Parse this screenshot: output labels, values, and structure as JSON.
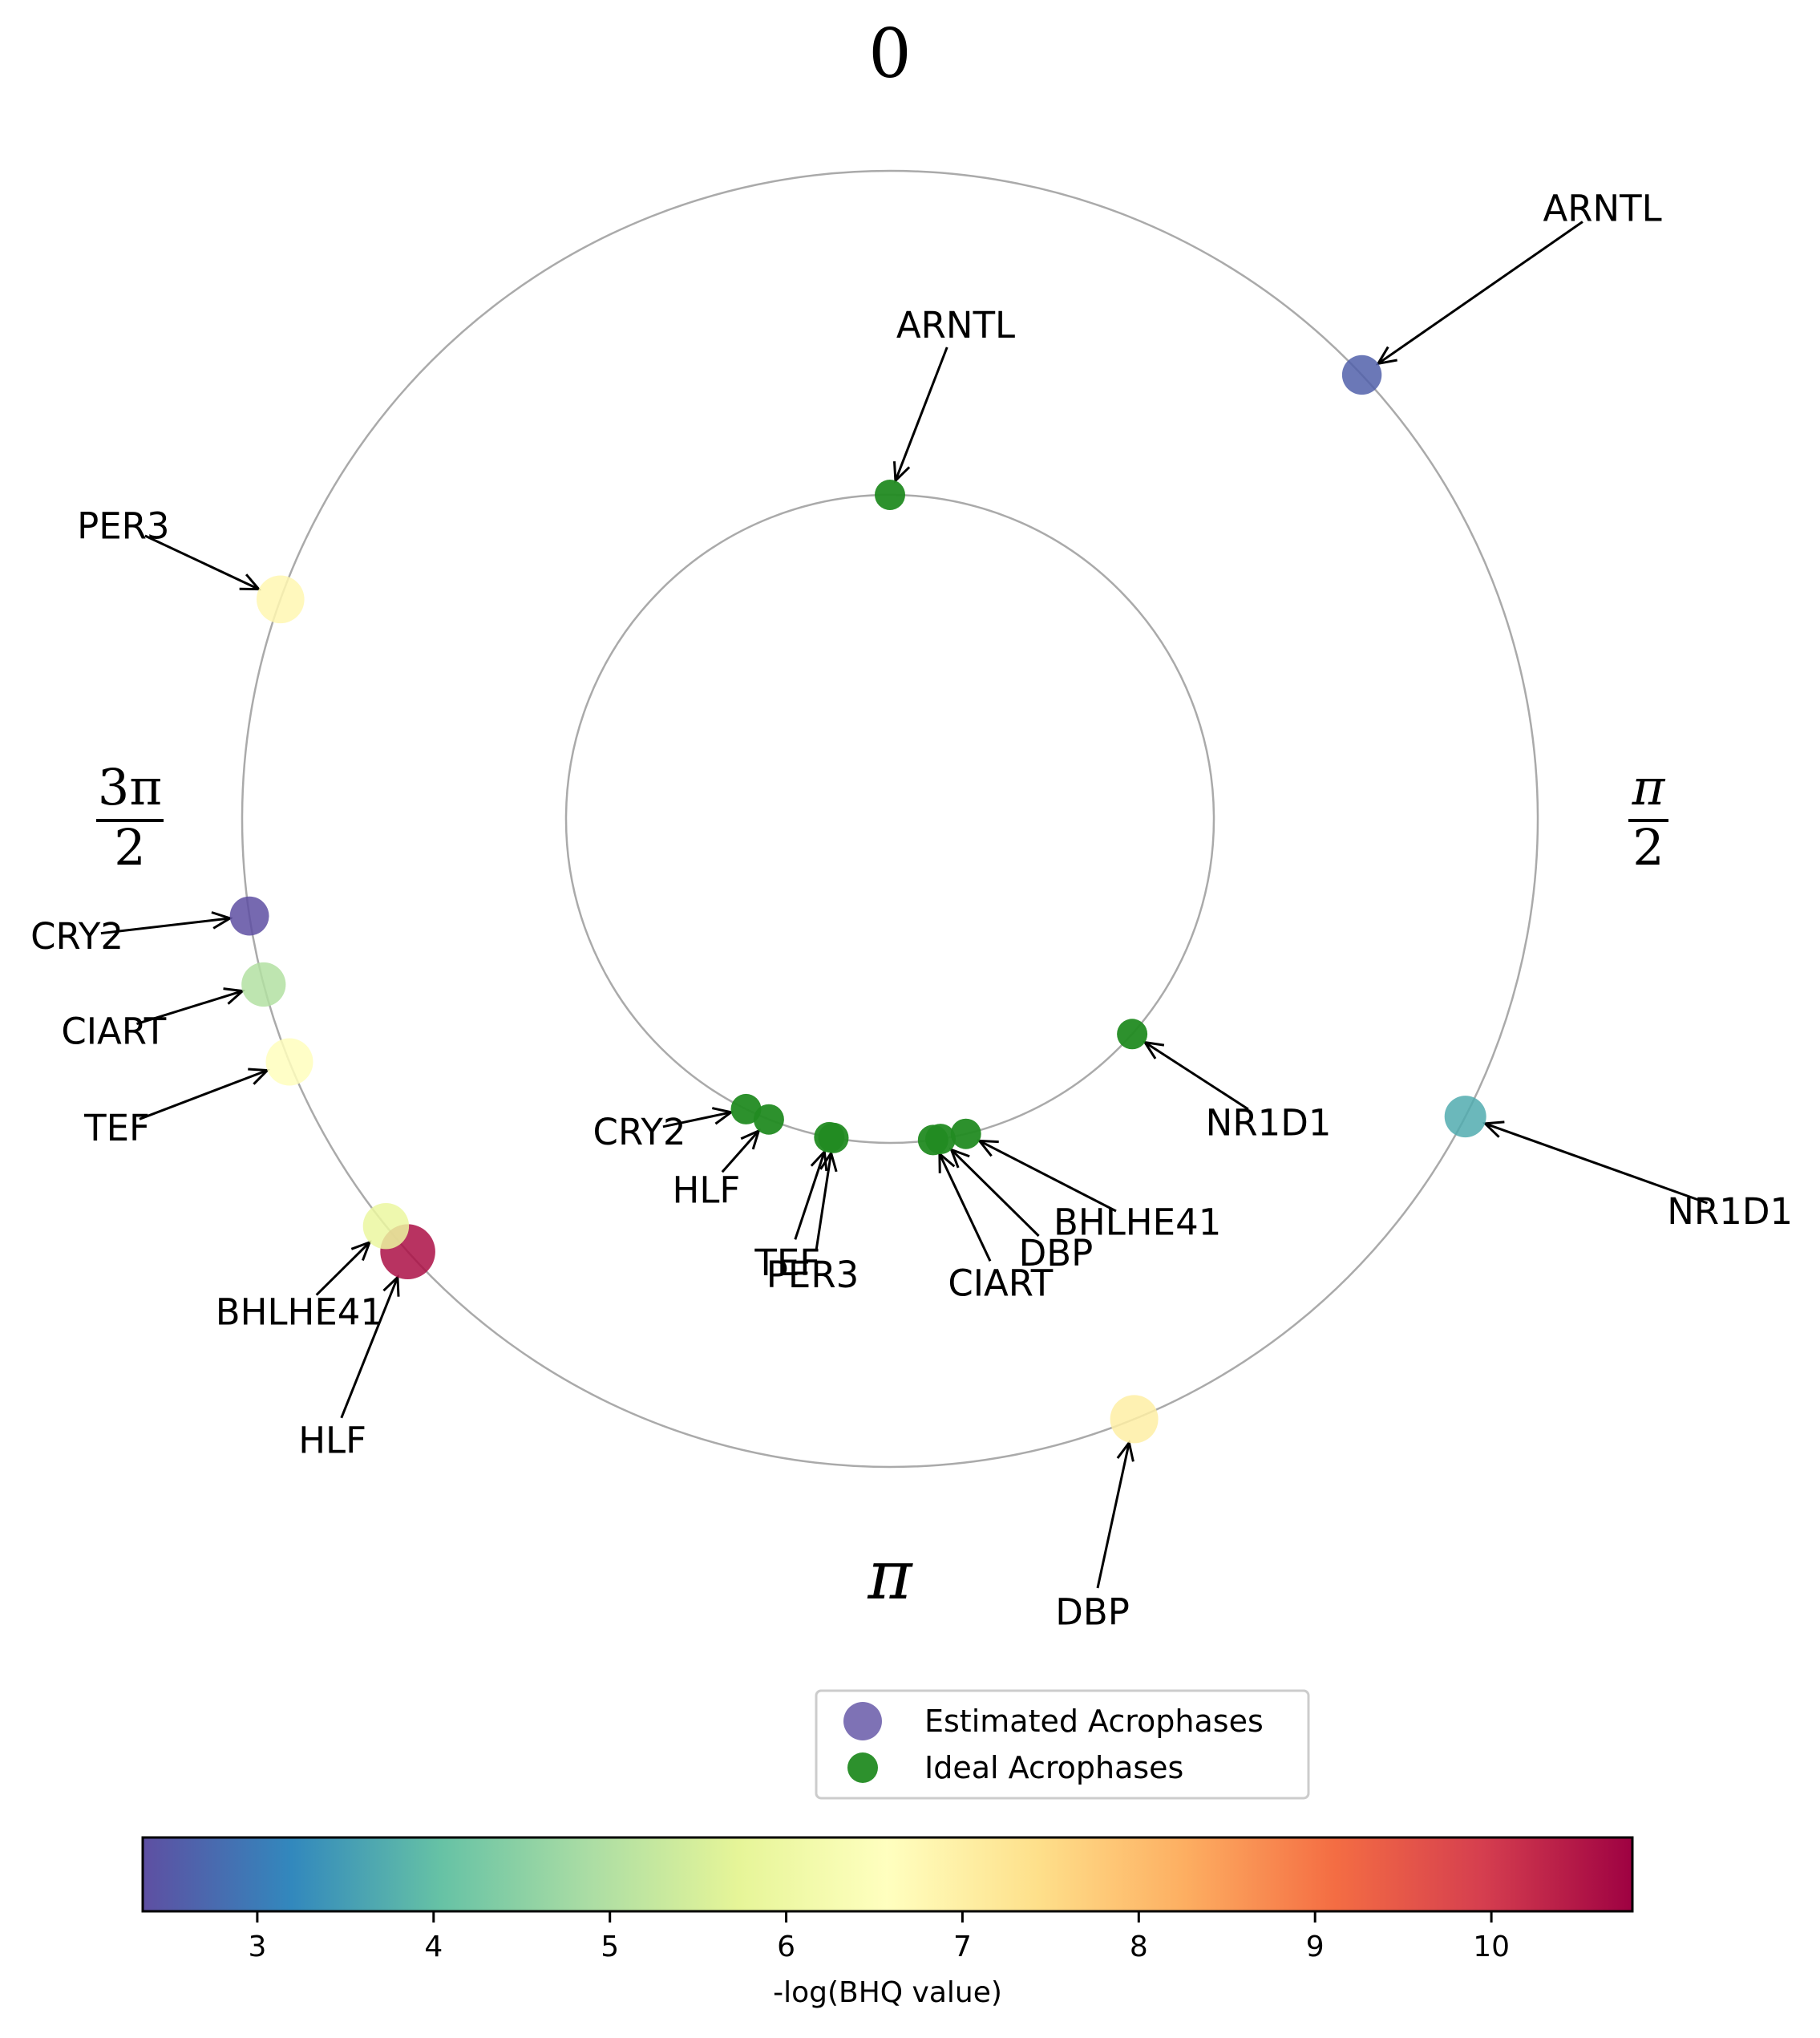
{
  "chart_data": {
    "type": "scatter",
    "projection": "polar",
    "angle_tick_labels": {
      "zero": "0",
      "half_pi": {
        "num": "π",
        "den": "2"
      },
      "pi": "π",
      "three_half_pi": {
        "num": "3π",
        "den": "2"
      }
    },
    "series": [
      {
        "name": "Estimated Acrophases",
        "ring": "outer",
        "points": [
          {
            "gene": "ARNTL",
            "angle": 0.816,
            "value": 2.6
          },
          {
            "gene": "NR1D1",
            "angle": 2.048,
            "value": 3.7
          },
          {
            "gene": "DBP",
            "angle": 2.755,
            "value": 7.0
          },
          {
            "gene": "HLF",
            "angle": 3.981,
            "value": 10.6
          },
          {
            "gene": "BHLHE41",
            "angle": 4.033,
            "value": 5.9
          },
          {
            "gene": "TEF",
            "angle": 4.328,
            "value": 6.6
          },
          {
            "gene": "CIART",
            "angle": 4.454,
            "value": 5.0
          },
          {
            "gene": "CRY2",
            "angle": 4.562,
            "value": 2.3
          },
          {
            "gene": "PER3",
            "angle": 5.058,
            "value": 6.8
          }
        ]
      },
      {
        "name": "Ideal Acrophases",
        "ring": "inner",
        "points": [
          {
            "gene": "ARNTL",
            "angle": 0.0
          },
          {
            "gene": "NR1D1",
            "angle": 2.297
          },
          {
            "gene": "BHLHE41",
            "angle": 2.905
          },
          {
            "gene": "DBP",
            "angle": 2.985
          },
          {
            "gene": "CIART",
            "angle": 3.008
          },
          {
            "gene": "PER3",
            "angle": 3.317
          },
          {
            "gene": "TEF",
            "angle": 3.33
          },
          {
            "gene": "HLF",
            "angle": 3.525
          },
          {
            "gene": "CRY2",
            "angle": 3.602
          }
        ]
      }
    ],
    "legend": {
      "entries": [
        "Estimated Acrophases",
        "Ideal Acrophases"
      ],
      "placement": "bottom-center"
    },
    "colorbar": {
      "label": "-log(BHQ value)",
      "range": [
        2.35,
        10.8
      ],
      "ticks": [
        "3",
        "4",
        "5",
        "6",
        "7",
        "8",
        "9",
        "10"
      ],
      "colormap": [
        "#5e4fa2",
        "#3288bd",
        "#66c2a5",
        "#abdda4",
        "#e6f598",
        "#ffffbf",
        "#fee08b",
        "#fdae61",
        "#f46d43",
        "#d53e4f",
        "#9e0142"
      ]
    },
    "colors": {
      "ideal": "#228b22",
      "ring": "#aaaaaa"
    }
  }
}
